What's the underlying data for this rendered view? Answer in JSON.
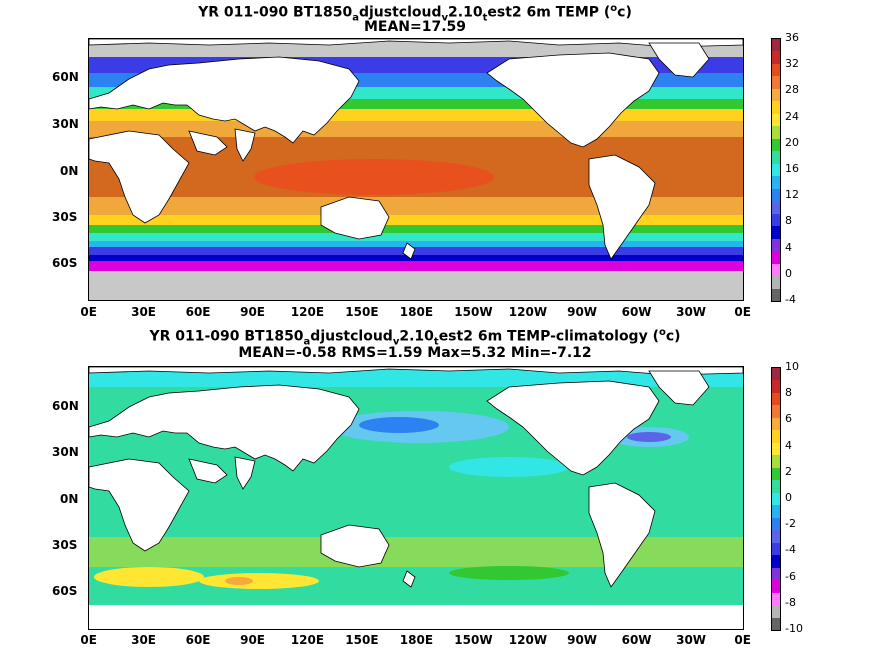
{
  "panels": [
    {
      "title_prefix": "YR 011-090 BT1850",
      "title_sub1": "a",
      "title_mid1": "djustcloud",
      "title_sub2": "v",
      "title_mid2": "2.10",
      "title_sub3": "t",
      "title_suffix": "est2 6m TEMP (",
      "title_sup": "o",
      "title_unit_end": "c)",
      "stats_line": "MEAN=17.59",
      "colorbar": {
        "labels": [
          "36",
          "32",
          "28",
          "24",
          "20",
          "16",
          "12",
          "8",
          "4",
          "0",
          "-4"
        ],
        "colors": [
          "#a0283c",
          "#c82828",
          "#e64b1e",
          "#f07832",
          "#f5aa3c",
          "#ffd21e",
          "#ffe632",
          "#aadc3c",
          "#32c832",
          "#32dca0",
          "#32e6e6",
          "#28b4f0",
          "#2c82f0",
          "#5a64e6",
          "#3c3ce6",
          "#0000c8",
          "#8232dc",
          "#dc00dc",
          "#ff78ff",
          "#b4b4b4",
          "#646464"
        ]
      }
    },
    {
      "title_prefix": "YR 011-090 BT1850",
      "title_sub1": "a",
      "title_mid1": "djustcloud",
      "title_sub2": "v",
      "title_mid2": "2.10",
      "title_sub3": "t",
      "title_suffix": "est2 6m TEMP-climatology (",
      "title_sup": "o",
      "title_unit_end": "c)",
      "stats_line": "MEAN=-0.58   RMS=1.59   Max=5.32   Min=-7.12",
      "colorbar": {
        "labels": [
          "10",
          "8",
          "6",
          "4",
          "2",
          "0",
          "-2",
          "-4",
          "-6",
          "-8",
          "-10"
        ],
        "colors": [
          "#a0283c",
          "#c82828",
          "#e64b1e",
          "#f07832",
          "#f5aa3c",
          "#ffd21e",
          "#ffe632",
          "#aadc3c",
          "#32c832",
          "#32dca0",
          "#32e6e6",
          "#28b4f0",
          "#2c82f0",
          "#5a64e6",
          "#3c3ce6",
          "#0000c8",
          "#8232dc",
          "#dc00dc",
          "#ff78ff",
          "#b4b4b4",
          "#646464"
        ]
      }
    }
  ],
  "axes": {
    "lat_labels": [
      "60N",
      "30N",
      "0N",
      "30S",
      "60S"
    ],
    "lon_labels": [
      "0E",
      "30E",
      "60E",
      "90E",
      "120E",
      "150E",
      "180E",
      "150W",
      "120W",
      "90W",
      "60W",
      "30W",
      "0E"
    ]
  },
  "colors": {
    "land": "#ffffff",
    "ice_mask": "#c8c8c8",
    "top_band_colors": {
      "tropics": "#d2691e",
      "warm_pool": "#e8501e",
      "subtropics": "#f0a83c",
      "mid": "#ffd21e",
      "temperate": "#32c832",
      "cool": "#32e6c8",
      "cold": "#2c82f0",
      "polar": "#3c3ce6",
      "antarctic": "#dc00dc"
    },
    "bottom_colors": {
      "background": "#32dca0",
      "cyan": "#32e6e6",
      "light_blue": "#64c8f0",
      "blue": "#2c82f0",
      "green": "#32c832",
      "yellow": "#ffe632",
      "orange": "#f5aa3c"
    }
  }
}
